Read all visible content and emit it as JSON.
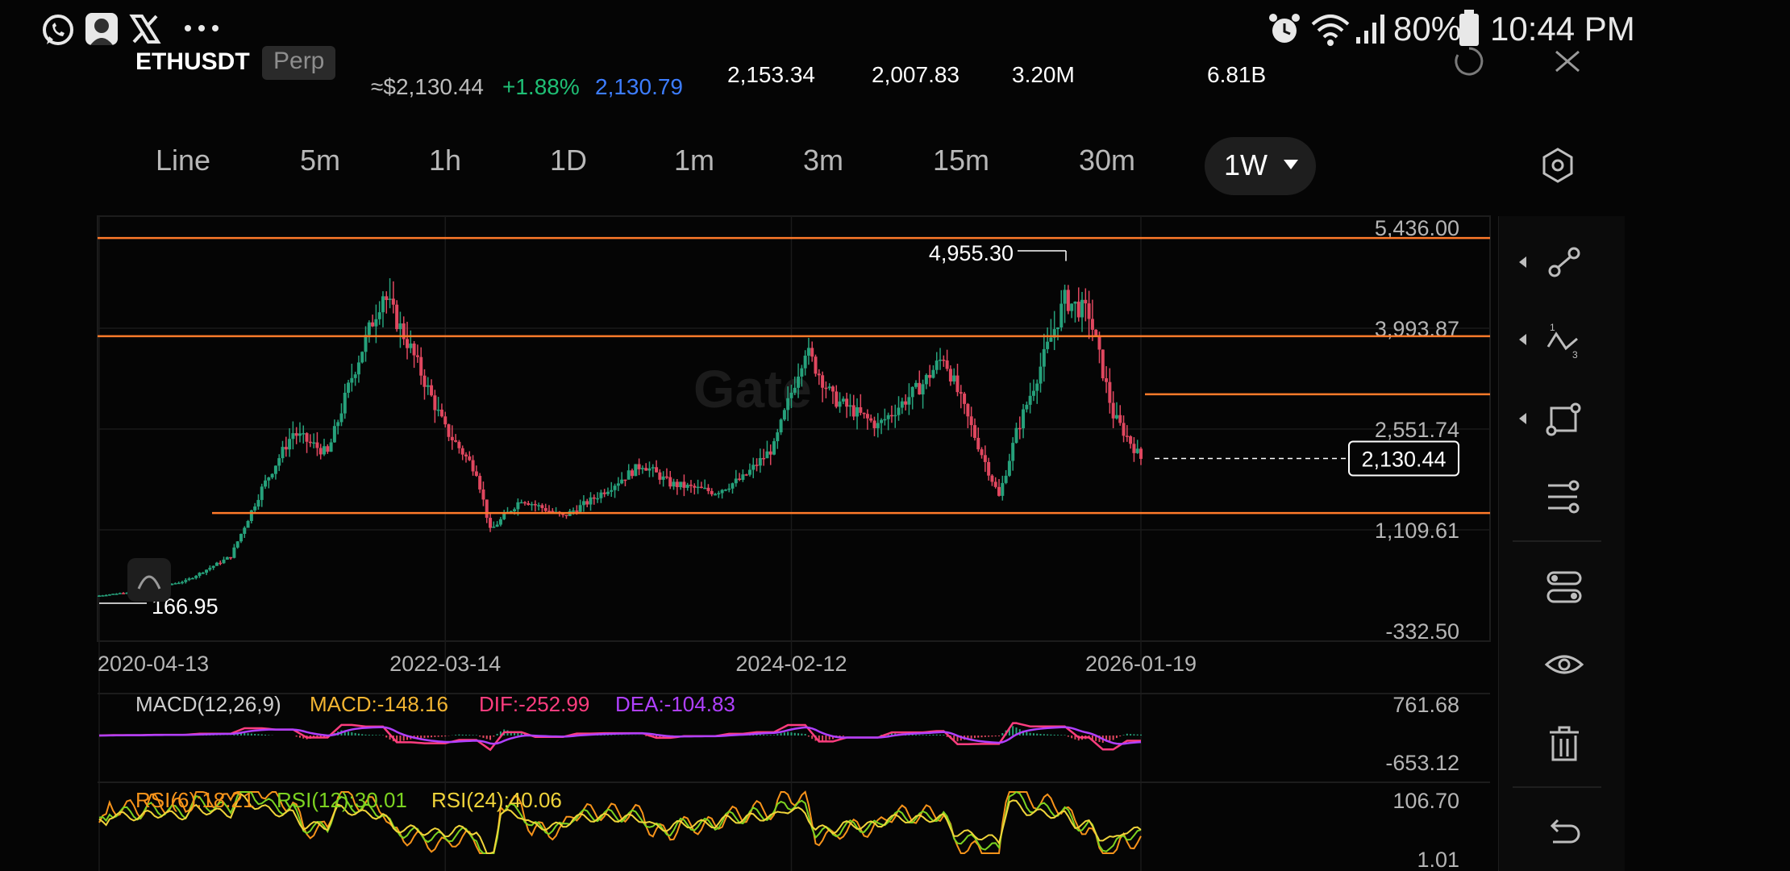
{
  "status_bar": {
    "battery": "80%",
    "time": "10:44 PM",
    "left_icons": [
      "whatsapp-icon",
      "profile-app-icon",
      "x-app-icon",
      "more-icon"
    ],
    "right_icons": [
      "alarm-icon",
      "wifi-icon",
      "signal-icon",
      "battery-icon"
    ]
  },
  "header": {
    "symbol": "ETHUSDT",
    "badge": "Perp",
    "approx_price": "≈$2,130.44",
    "change": "+1.88%",
    "mark_price": "2,130.79",
    "high": "2,153.34",
    "low": "2,007.83",
    "volume": "3.20M",
    "turnover": "6.81B",
    "colors": {
      "up": "#1fbf75",
      "mark": "#3d7dff"
    }
  },
  "intervals": {
    "tabs": [
      "Line",
      "5m",
      "1h",
      "1D",
      "1m",
      "3m",
      "15m",
      "30m"
    ],
    "active": "1W",
    "settings_icon": "hexagon-settings-icon"
  },
  "chart": {
    "price_axis": [
      "5,436.00",
      "3,993.87",
      "2,551.74",
      "1,109.61",
      "-332.50"
    ],
    "date_axis": [
      "2020-04-13",
      "2022-03-14",
      "2024-02-12",
      "2026-01-19"
    ],
    "last_price": "2,130.44",
    "high_marker": "4,955.30",
    "low_marker": "166.95",
    "watermark": "Gate",
    "colors": {
      "up": "#26a17b",
      "down": "#e0475f",
      "hline": "#ff7a2a"
    }
  },
  "macd": {
    "label": "MACD(12,26,9)",
    "macd": "MACD:-148.16",
    "dif": "DIF:-252.99",
    "dea": "DEA:-104.83",
    "axis_top": "761.68",
    "axis_bottom": "-653.12",
    "colors": {
      "label": "#cfcfcf",
      "macd": "#f2b431",
      "dif": "#ff3d7f",
      "dea": "#b040ff"
    }
  },
  "rsi": {
    "rsi6": "RSI(6):18.21",
    "rsi12": "RSI(12):30.01",
    "rsi24": "RSI(24):40.06",
    "axis_top": "106.70",
    "axis_bottom": "1.01",
    "colors": {
      "rsi6": "#f7931a",
      "rsi12": "#7cd321",
      "rsi24": "#f0d43a"
    }
  },
  "chart_data": {
    "type": "candlestick",
    "timeframe": "1W",
    "x": [
      "2020-04-13",
      "2020-07-06",
      "2020-10-05",
      "2021-01-04",
      "2021-03-08",
      "2021-05-10",
      "2021-07-19",
      "2021-09-06",
      "2021-11-08",
      "2022-01-03",
      "2022-03-14",
      "2022-05-16",
      "2022-06-13",
      "2022-08-15",
      "2022-11-07",
      "2023-01-02",
      "2023-04-17",
      "2023-06-12",
      "2023-09-11",
      "2023-11-06",
      "2024-01-08",
      "2024-03-11",
      "2024-05-06",
      "2024-08-05",
      "2024-11-04",
      "2024-12-16",
      "2025-02-03",
      "2025-04-07",
      "2025-05-12",
      "2025-08-18",
      "2025-10-06",
      "2025-11-24",
      "2026-01-19"
    ],
    "close": [
      170,
      240,
      380,
      730,
      1700,
      2500,
      2200,
      3300,
      4500,
      3700,
      2550,
      1950,
      1100,
      1550,
      1300,
      1530,
      2050,
      1770,
      1650,
      1850,
      2300,
      3700,
      2990,
      2600,
      3200,
      3600,
      2700,
      1580,
      2500,
      4400,
      4200,
      2750,
      2130.44
    ],
    "ylim": [
      -332.5,
      5436.0
    ],
    "y_ticks": [
      5436.0,
      3993.87,
      2551.74,
      1109.61,
      -332.5
    ],
    "horizontal_lines": [
      5285,
      3880,
      1350,
      3050
    ],
    "high": 4955.3,
    "low": 166.95,
    "last": 2130.44
  }
}
